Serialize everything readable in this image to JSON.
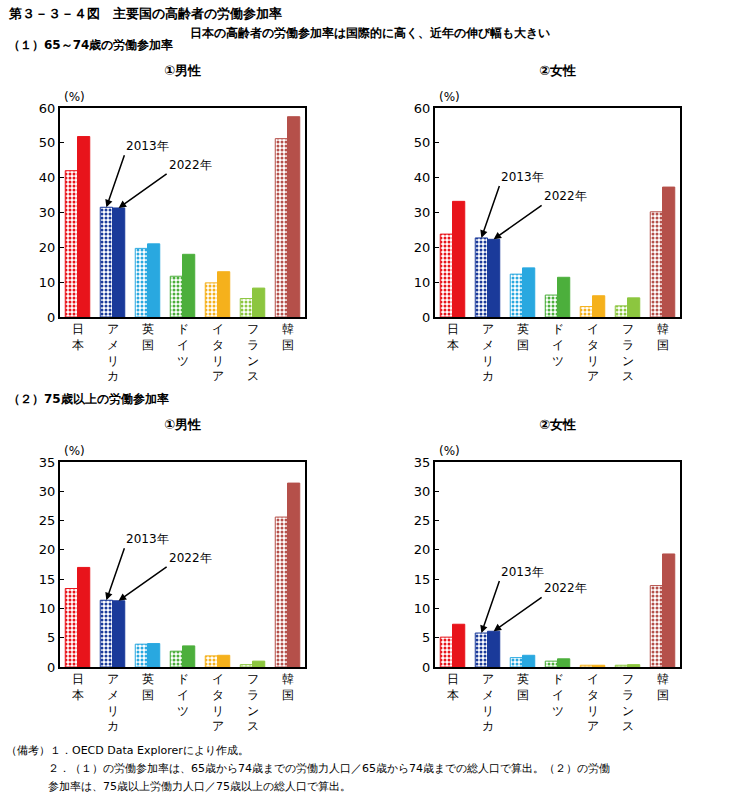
{
  "title": "第３－３－４図　主要国の高齢者の労働参加率",
  "subtitle": "日本の高齢者の労働参加率は国際的に高く、近年の伸び幅も大きい",
  "notes": [
    "（備考）１．OECD Data Explorerにより作成。",
    "２．（１）の労働参加率は、65歳から74歳までの労働力人口／65歳から74歳までの総人口で算出。（２）の労働",
    "参加率は、75歳以上労働力人口／75歳以上の総人口で算出。"
  ],
  "chart_data": [
    {
      "type": "bar",
      "section": "（１）65～74歳の労働参加率",
      "title": "①男性",
      "y_label": "(%)",
      "categories": [
        "日本",
        "アメリカ",
        "英国",
        "ドイツ",
        "イタリア",
        "フランス",
        "韓国"
      ],
      "series": [
        {
          "name": "2013年",
          "marker": "dots",
          "colors": [
            "#e8141b",
            "#1a3a9a",
            "#29a8e0",
            "#4caf3c",
            "#f5b11c",
            "#8cc63f",
            "#b5504a"
          ],
          "values": [
            42.0,
            31.5,
            19.7,
            11.7,
            9.8,
            5.3,
            51.2
          ]
        },
        {
          "name": "2022年",
          "marker": "solid",
          "colors": [
            "#e8141b",
            "#1a3a9a",
            "#29a8e0",
            "#4caf3c",
            "#f5b11c",
            "#8cc63f",
            "#b5504a"
          ],
          "values": [
            51.8,
            31.3,
            21.0,
            18.0,
            13.0,
            8.3,
            57.5
          ]
        }
      ],
      "ylim": [
        0,
        60
      ],
      "yticks": [
        0,
        10,
        20,
        30,
        40,
        50,
        60
      ],
      "grid": false
    },
    {
      "type": "bar",
      "title": "②女性",
      "y_label": "(%)",
      "categories": [
        "日本",
        "アメリカ",
        "英国",
        "ドイツ",
        "イタリア",
        "フランス",
        "韓国"
      ],
      "series": [
        {
          "name": "2013年",
          "marker": "dots",
          "colors": [
            "#e8141b",
            "#1a3a9a",
            "#29a8e0",
            "#4caf3c",
            "#f5b11c",
            "#8cc63f",
            "#b5504a"
          ],
          "values": [
            23.8,
            22.7,
            12.3,
            6.3,
            3.0,
            3.2,
            30.2
          ]
        },
        {
          "name": "2022年",
          "marker": "solid",
          "colors": [
            "#e8141b",
            "#1a3a9a",
            "#29a8e0",
            "#4caf3c",
            "#f5b11c",
            "#8cc63f",
            "#b5504a"
          ],
          "values": [
            33.2,
            22.3,
            14.1,
            11.4,
            6.1,
            5.5,
            37.3
          ]
        }
      ],
      "ylim": [
        0,
        60
      ],
      "yticks": [
        0,
        10,
        20,
        30,
        40,
        50,
        60
      ],
      "grid": false
    },
    {
      "type": "bar",
      "section": "（２）75歳以上の労働参加率",
      "title": "①男性",
      "y_label": "(%)",
      "categories": [
        "日本",
        "アメリカ",
        "英国",
        "ドイツ",
        "イタリア",
        "フランス",
        "韓国"
      ],
      "series": [
        {
          "name": "2013年",
          "marker": "dots",
          "colors": [
            "#e8141b",
            "#1a3a9a",
            "#29a8e0",
            "#4caf3c",
            "#f5b11c",
            "#8cc63f",
            "#b5504a"
          ],
          "values": [
            13.4,
            11.4,
            3.9,
            2.7,
            1.9,
            0.4,
            25.6
          ]
        },
        {
          "name": "2022年",
          "marker": "solid",
          "colors": [
            "#e8141b",
            "#1a3a9a",
            "#29a8e0",
            "#4caf3c",
            "#f5b11c",
            "#8cc63f",
            "#b5504a"
          ],
          "values": [
            17.0,
            11.3,
            4.0,
            3.6,
            2.0,
            1.0,
            31.4
          ]
        }
      ],
      "ylim": [
        0,
        35
      ],
      "yticks": [
        0,
        5,
        10,
        15,
        20,
        25,
        30,
        35
      ],
      "grid": false
    },
    {
      "type": "bar",
      "title": "②女性",
      "y_label": "(%)",
      "categories": [
        "日本",
        "アメリカ",
        "英国",
        "ドイツ",
        "イタリア",
        "フランス",
        "韓国"
      ],
      "series": [
        {
          "name": "2013年",
          "marker": "dots",
          "colors": [
            "#e8141b",
            "#1a3a9a",
            "#29a8e0",
            "#4caf3c",
            "#f5b11c",
            "#8cc63f",
            "#b5504a"
          ],
          "values": [
            5.1,
            5.8,
            1.6,
            1.0,
            0.3,
            0.3,
            13.9
          ]
        },
        {
          "name": "2022年",
          "marker": "solid",
          "colors": [
            "#e8141b",
            "#1a3a9a",
            "#29a8e0",
            "#4caf3c",
            "#f5b11c",
            "#8cc63f",
            "#b5504a"
          ],
          "values": [
            7.3,
            6.1,
            2.0,
            1.4,
            0.3,
            0.4,
            19.3
          ]
        }
      ],
      "ylim": [
        0,
        35
      ],
      "yticks": [
        0,
        5,
        10,
        15,
        20,
        25,
        30,
        35
      ],
      "grid": false
    }
  ]
}
